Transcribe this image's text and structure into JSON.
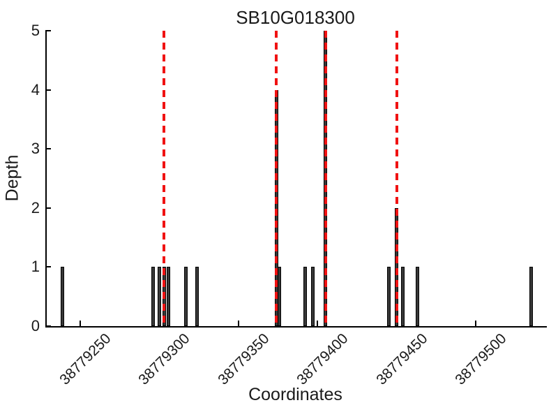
{
  "title": "SB10G018300",
  "chart_data": {
    "type": "bar",
    "title": "SB10G018300",
    "xlabel": "Coordinates",
    "ylabel": "Depth",
    "ylim": [
      0,
      5
    ],
    "xlim": [
      38779228,
      38779544
    ],
    "grid": false,
    "legend": "none",
    "y_ticks": [
      0,
      1,
      2,
      3,
      4,
      5
    ],
    "x_ticks": [
      38779250,
      38779300,
      38779350,
      38779400,
      38779450,
      38779500
    ],
    "x_tick_rotation_deg": 45,
    "bars": [
      {
        "x": 38779239,
        "depth": 1
      },
      {
        "x": 38779296,
        "depth": 1
      },
      {
        "x": 38779300,
        "depth": 1
      },
      {
        "x": 38779303,
        "depth": 1
      },
      {
        "x": 38779306,
        "depth": 1
      },
      {
        "x": 38779317,
        "depth": 1
      },
      {
        "x": 38779324,
        "depth": 1
      },
      {
        "x": 38779374,
        "depth": 4
      },
      {
        "x": 38779376,
        "depth": 1
      },
      {
        "x": 38779392,
        "depth": 1
      },
      {
        "x": 38779397,
        "depth": 1
      },
      {
        "x": 38779405,
        "depth": 5
      },
      {
        "x": 38779445,
        "depth": 1
      },
      {
        "x": 38779450,
        "depth": 2
      },
      {
        "x": 38779454,
        "depth": 1
      },
      {
        "x": 38779463,
        "depth": 1
      },
      {
        "x": 38779535,
        "depth": 1
      }
    ],
    "red_dashed_lines": [
      38779303,
      38779374,
      38779405,
      38779450
    ],
    "colors": {
      "bar_fill": "#383838",
      "bar_edge": "#000000",
      "red_line": "#f01212",
      "axis": "#000000",
      "background": "#ffffff"
    }
  }
}
